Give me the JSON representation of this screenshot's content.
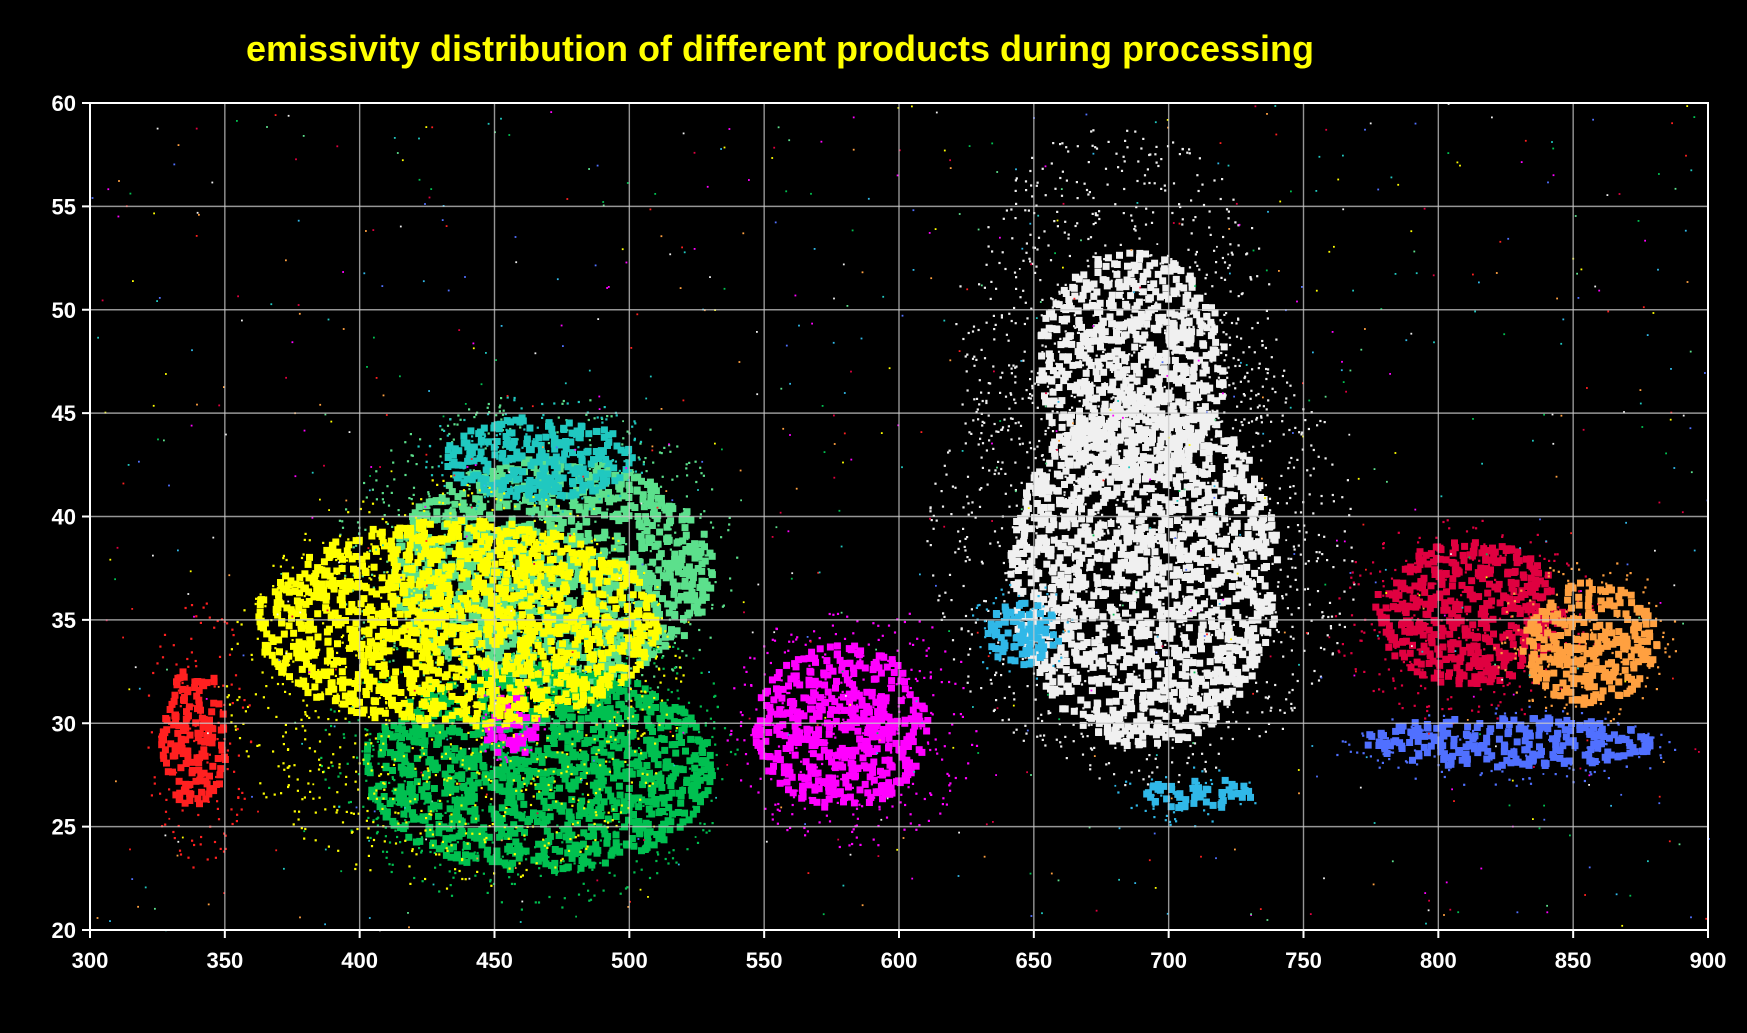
{
  "colors": {
    "background": "#000000",
    "grid": "#c8c8c8",
    "axis": "#ffffff",
    "title": "#ffff00",
    "tick_text": "#ffffff"
  },
  "chart_data": {
    "type": "scatter",
    "title": "emissivity distribution of different products during processing",
    "xlabel": "",
    "ylabel": "",
    "xlim": [
      300,
      900
    ],
    "ylim": [
      20,
      60
    ],
    "x_ticks": [
      300,
      350,
      400,
      450,
      500,
      550,
      600,
      650,
      700,
      750,
      800,
      850,
      900
    ],
    "y_ticks": [
      20,
      25,
      30,
      35,
      40,
      45,
      50,
      55,
      60
    ],
    "x_tick_labels": [
      "300",
      "350",
      "400",
      "450",
      "500",
      "550",
      "600",
      "650",
      "700",
      "750",
      "800",
      "850",
      "900"
    ],
    "y_tick_labels": [
      "20",
      "25",
      "30",
      "35",
      "40",
      "45",
      "50",
      "55",
      "60"
    ],
    "grid": true,
    "legend": "none",
    "series": [
      {
        "color": "#f0f0f0",
        "clusters": [
          {
            "x": [
              610,
              770
            ],
            "y": [
              27,
              50
            ],
            "core_x": [
              640,
              740
            ],
            "core_y": [
              29,
              46
            ]
          },
          {
            "x": [
              620,
              740
            ],
            "y": [
              38,
              59
            ],
            "core_x": [
              650,
              720
            ],
            "core_y": [
              42,
              53
            ]
          }
        ]
      },
      {
        "color": "#5ce08c",
        "clusters": [
          {
            "x": [
              390,
              540
            ],
            "y": [
              30,
              46
            ],
            "core_x": [
              410,
              530
            ],
            "core_y": [
              32,
              43
            ]
          }
        ]
      },
      {
        "color": "#00c050",
        "clusters": [
          {
            "x": [
              385,
              540
            ],
            "y": [
              21,
              36
            ],
            "core_x": [
              400,
              530
            ],
            "core_y": [
              23,
              33
            ]
          }
        ]
      },
      {
        "color": "#ff00ff",
        "clusters": [
          {
            "x": [
              535,
              630
            ],
            "y": [
              24,
              36
            ],
            "core_x": [
              545,
              610
            ],
            "core_y": [
              26,
              34
            ]
          },
          {
            "x": [
              440,
              470
            ],
            "y": [
              28,
              32
            ],
            "core_x": [
              445,
              465
            ],
            "core_y": [
              28.5,
              31.5
            ]
          }
        ]
      },
      {
        "color": "#e00040",
        "clusters": [
          {
            "x": [
              760,
              860
            ],
            "y": [
              30,
              40
            ],
            "core_x": [
              775,
              845
            ],
            "core_y": [
              32,
              39
            ]
          }
        ]
      },
      {
        "color": "#ffa040",
        "clusters": [
          {
            "x": [
              820,
              890
            ],
            "y": [
              30,
              38
            ],
            "core_x": [
              830,
              880
            ],
            "core_y": [
              31,
              37
            ]
          }
        ]
      },
      {
        "color": "#5070ff",
        "clusters": [
          {
            "x": [
              760,
              890
            ],
            "y": [
              27,
              31
            ],
            "core_x": [
              770,
              880
            ],
            "core_y": [
              28,
              30.5
            ]
          }
        ]
      },
      {
        "color": "#30b8e8",
        "clusters": [
          {
            "x": [
              625,
              665
            ],
            "y": [
              32,
              37
            ],
            "core_x": [
              630,
              660
            ],
            "core_y": [
              33,
              36
            ]
          },
          {
            "x": [
              680,
              735
            ],
            "y": [
              25,
              28
            ],
            "core_x": [
              690,
              730
            ],
            "core_y": [
              26,
              27.5
            ]
          }
        ]
      },
      {
        "color": "#20c8c0",
        "clusters": [
          {
            "x": [
              420,
              510
            ],
            "y": [
              40,
              46
            ],
            "core_x": [
              430,
              500
            ],
            "core_y": [
              41,
              45
            ]
          }
        ]
      },
      {
        "color": "#ffff00",
        "clusters": [
          {
            "x": [
              350,
              520
            ],
            "y": [
              22,
              42
            ],
            "core_x": [
              360,
              510
            ],
            "core_y": [
              30,
              40
            ]
          }
        ]
      },
      {
        "color": "#ff2020",
        "clusters": [
          {
            "x": [
              320,
              360
            ],
            "y": [
              23,
              36
            ],
            "core_x": [
              325,
              350
            ],
            "core_y": [
              26,
              33
            ]
          }
        ]
      }
    ]
  }
}
